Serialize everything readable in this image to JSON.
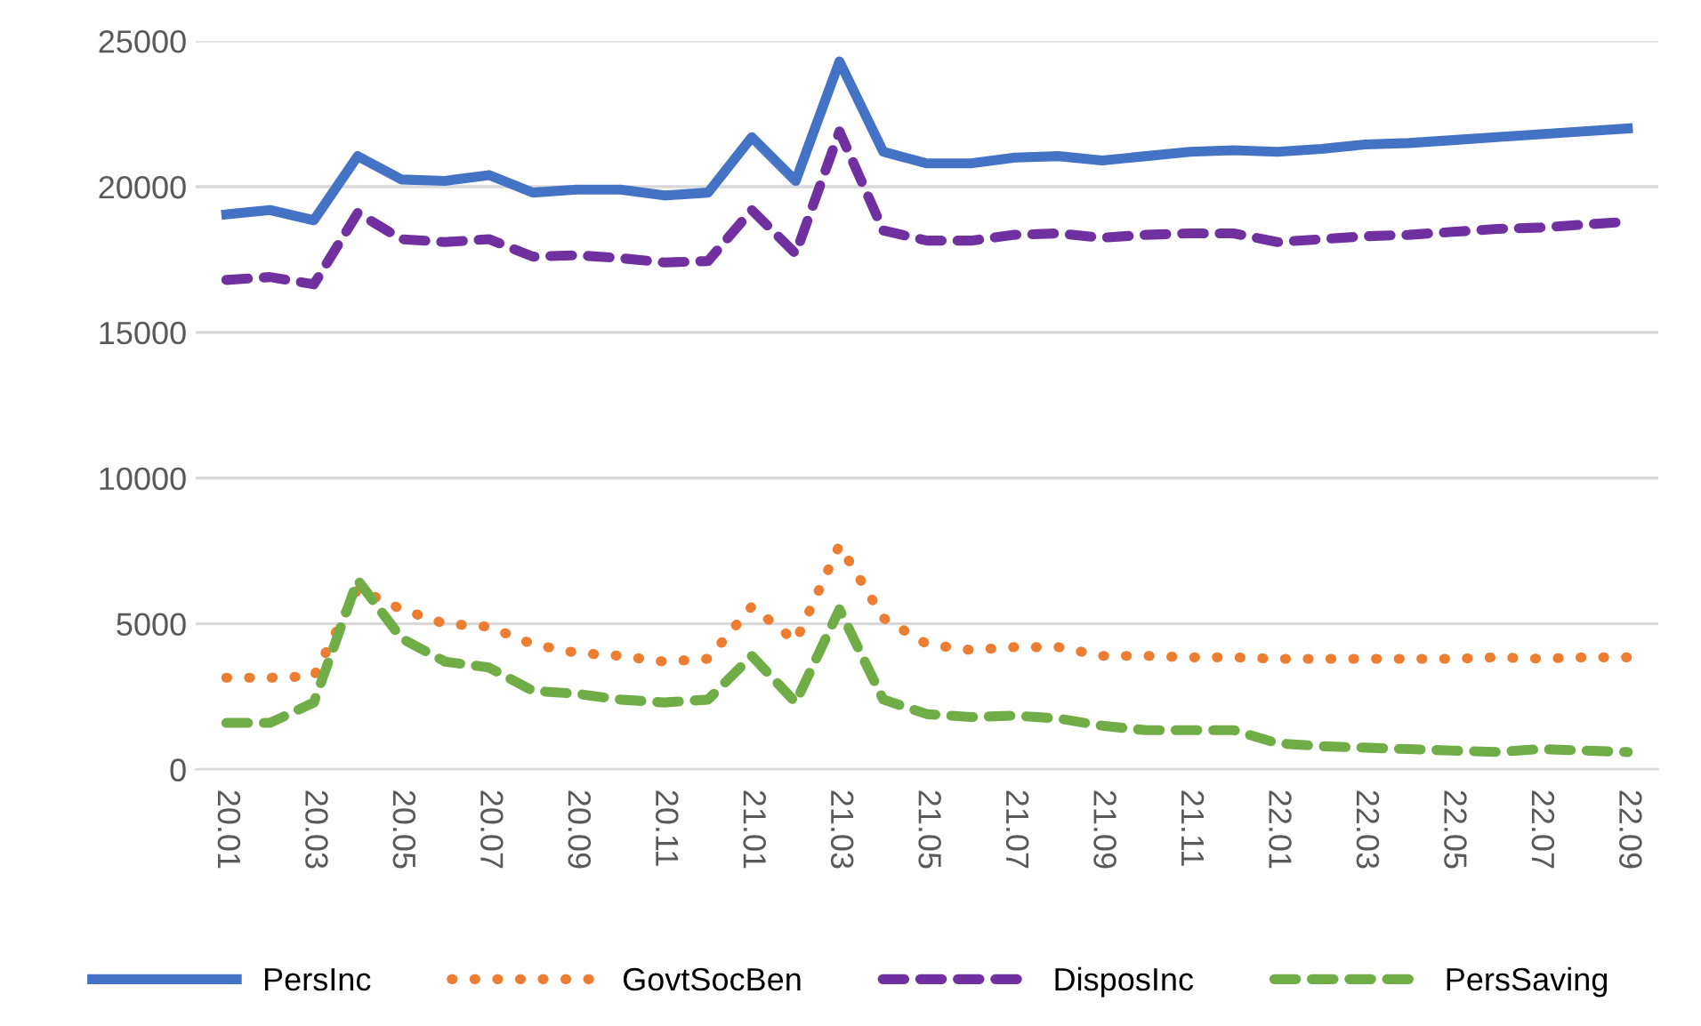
{
  "chart_data": {
    "type": "line",
    "categories": [
      "20.01",
      null,
      "20.03",
      null,
      "20.05",
      null,
      "20.07",
      null,
      "20.09",
      null,
      "20.11",
      null,
      "21.01",
      null,
      "21.03",
      null,
      "21.05",
      null,
      "21.07",
      null,
      "21.09",
      null,
      "21.11",
      null,
      "22.01",
      null,
      "22.03",
      null,
      "22.05",
      null,
      "22.07",
      null,
      "22.09"
    ],
    "series": [
      {
        "name": "PersInc",
        "color": "#4472c4",
        "line_style": "solid",
        "values": [
          19050,
          19200,
          18850,
          21050,
          20250,
          20200,
          20400,
          19800,
          19900,
          19900,
          19700,
          19800,
          21700,
          20200,
          24300,
          21200,
          20800,
          20800,
          21000,
          21050,
          20900,
          21050,
          21200,
          21250,
          21200,
          21300,
          21450,
          21500,
          21600,
          21700,
          21800,
          21900,
          22000
        ]
      },
      {
        "name": "GovtSocBen",
        "color": "#ed7d31",
        "line_style": "dotted",
        "values": [
          3150,
          3150,
          3200,
          6200,
          5500,
          5000,
          4900,
          4300,
          4000,
          3900,
          3700,
          3800,
          5600,
          4400,
          7700,
          5200,
          4300,
          4100,
          4200,
          4200,
          3900,
          3900,
          3850,
          3850,
          3800,
          3800,
          3800,
          3800,
          3800,
          3850,
          3800,
          3850,
          3850
        ]
      },
      {
        "name": "DisposInc",
        "color": "#7030a0",
        "line_style": "dashed",
        "values": [
          16800,
          16900,
          16650,
          19100,
          18200,
          18100,
          18200,
          17600,
          17650,
          17550,
          17400,
          17450,
          19200,
          17700,
          21900,
          18500,
          18150,
          18150,
          18350,
          18400,
          18250,
          18350,
          18400,
          18400,
          18100,
          18200,
          18300,
          18350,
          18450,
          18550,
          18600,
          18700,
          18800
        ]
      },
      {
        "name": "PersSaving",
        "color": "#70ad47",
        "line_style": "dashed",
        "values": [
          1600,
          1600,
          2300,
          6500,
          4500,
          3700,
          3500,
          2700,
          2600,
          2400,
          2300,
          2400,
          3900,
          2300,
          5500,
          2400,
          1900,
          1800,
          1850,
          1750,
          1500,
          1350,
          1350,
          1350,
          900,
          800,
          750,
          700,
          650,
          600,
          700,
          650,
          600
        ]
      }
    ],
    "ylim": [
      0,
      25000
    ],
    "yticks": [
      0,
      5000,
      10000,
      15000,
      20000,
      25000
    ],
    "grid": "y",
    "legend": "bottom"
  }
}
